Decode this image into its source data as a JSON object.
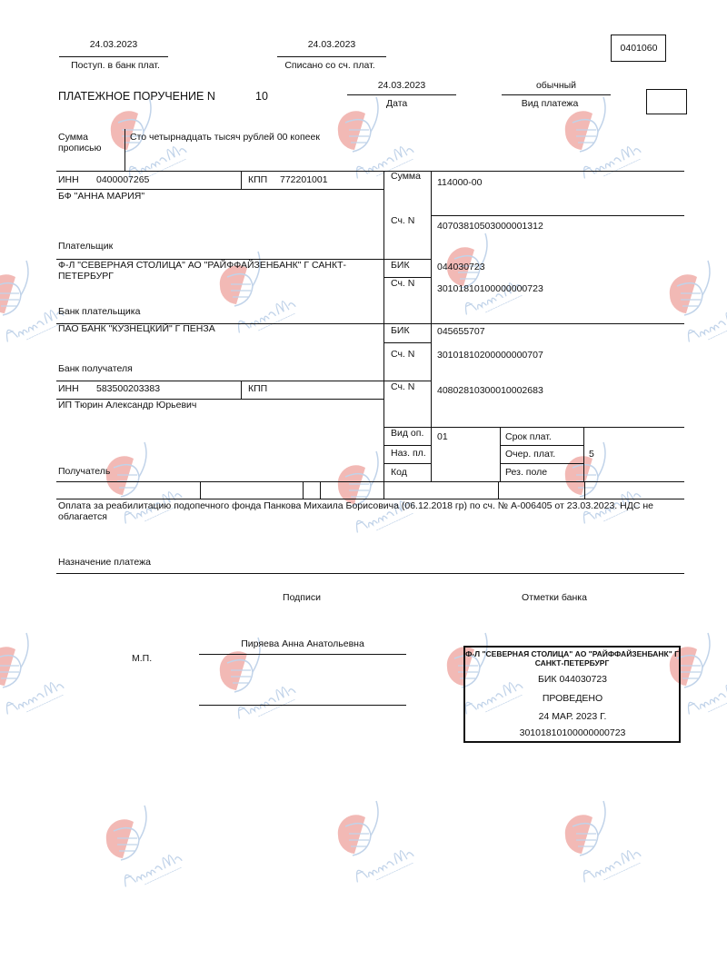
{
  "header": {
    "received_date": "24.03.2023",
    "received_label": "Поступ. в банк плат.",
    "debited_date": "24.03.2023",
    "debited_label": "Списано со сч. плат.",
    "form_code": "0401060"
  },
  "title": {
    "label": "ПЛАТЕЖНОЕ ПОРУЧЕНИЕ N",
    "number": "10",
    "date": "24.03.2023",
    "date_label": "Дата",
    "payment_type": "обычный",
    "payment_type_label": "Вид платежа"
  },
  "amount_words": {
    "label_1": "Сумма",
    "label_2": "прописью",
    "value": "Сто четырнадцать тысяч рублей 00 копеек"
  },
  "payer": {
    "inn_label": "ИНН",
    "inn": "0400007265",
    "kpp_label": "КПП",
    "kpp": "772201001",
    "name": "БФ \"АННА МАРИЯ\"",
    "label": "Плательщик",
    "amount_label": "Сумма",
    "amount": "114000-00",
    "account_label": "Сч. N",
    "account": "40703810503000001312"
  },
  "payer_bank": {
    "name_1": "Ф-Л \"СЕВЕРНАЯ СТОЛИЦА\" АО \"РАЙФФАЙЗЕНБАНК\" Г САНКТ-",
    "name_2": "ПЕТЕРБУРГ",
    "label": "Банк плательщика",
    "bik_label": "БИК",
    "bik": "044030723",
    "account_label": "Сч. N",
    "account": "30101810100000000723"
  },
  "payee_bank": {
    "name": "ПАО БАНК \"КУЗНЕЦКИЙ\" Г ПЕНЗА",
    "label": "Банк получателя",
    "bik_label": "БИК",
    "bik": "045655707",
    "account_label": "Сч. N",
    "account": "30101810200000000707"
  },
  "payee": {
    "inn_label": "ИНН",
    "inn": "583500203383",
    "kpp_label": "КПП",
    "name": "ИП Тюрин Александр Юрьевич",
    "label": "Получатель",
    "account_label": "Сч. N",
    "account": "40802810300010002683"
  },
  "codes": {
    "op_type_label": "Вид оп.",
    "op_type": "01",
    "purpose_code_label": "Наз. пл.",
    "code_label": "Код",
    "due_label": "Срок плат.",
    "priority_label": "Очер. плат.",
    "priority": "5",
    "reserve_label": "Рез. поле"
  },
  "purpose": {
    "text": "Оплата за реабилитацию подопечного фонда Панкова Михаила Борисовича  (06.12.2018 гр) по сч. № А-006405 от 23.03.2023.  НДС не облагается",
    "label": "Назначение платежа"
  },
  "signatures": {
    "label": "Подписи",
    "bank_marks_label": "Отметки банка",
    "seal_label": "М.П.",
    "signer": "Пиряева Анна Анатольевна"
  },
  "stamp": {
    "bank": "Ф-Л \"СЕВЕРНАЯ СТОЛИЦА\" АО \"РАЙФФАЙЗЕНБАНК\" Г САНКТ-ПЕТЕРБУРГ",
    "bik": "БИК 044030723",
    "status": "ПРОВЕДЕНО",
    "date": "24 МАР. 2023 Г.",
    "account": "30101810100000000723"
  },
  "watermark": {
    "name": "Анна Мария",
    "subtitle": "благотворительный фонд",
    "colors": {
      "red": "#e8817a",
      "blue": "#8fb0d8"
    }
  }
}
